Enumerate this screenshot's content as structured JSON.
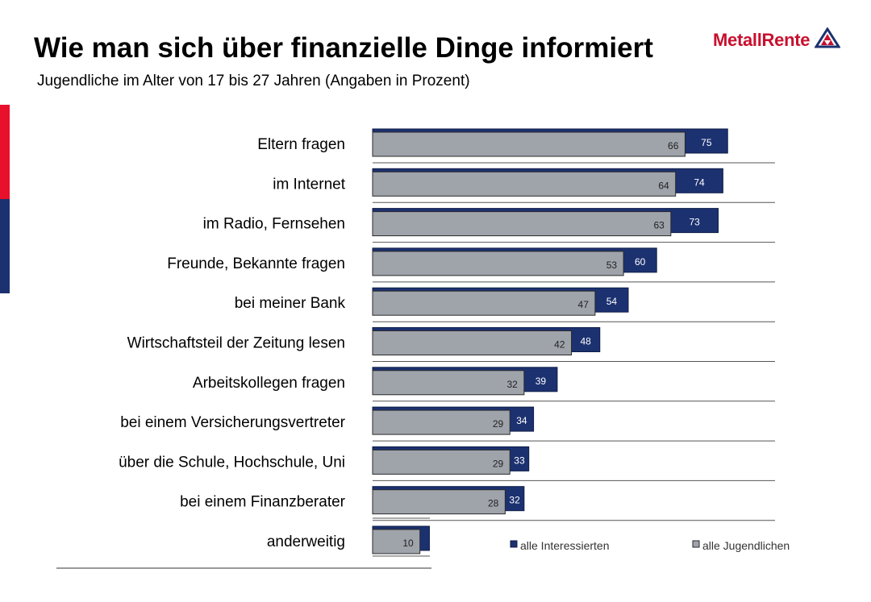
{
  "header": {
    "title": "Wie man sich über finanzielle Dinge informiert",
    "subtitle": "Jugendliche im Alter von 17 bis 27 Jahren (Angaben in Prozent)"
  },
  "logo": {
    "text": "MetallRente",
    "text_color": "#c8102e",
    "icon": "mountain-triangle-icon"
  },
  "colors": {
    "series_interested": "#1c3170",
    "series_all": "#9fa3aa",
    "accent_red": "#e8102b",
    "accent_blue": "#1c3170"
  },
  "chart_data": {
    "type": "bar",
    "orientation": "horizontal",
    "categories": [
      "Eltern fragen",
      "im Internet",
      "im Radio, Fernsehen",
      "Freunde, Bekannte fragen",
      "bei meiner Bank",
      "Wirtschaftsteil der Zeitung lesen",
      "Arbeitskollegen fragen",
      "bei einem Versicherungsvertreter",
      "über die Schule, Hochschule, Uni",
      "bei einem Finanzberater",
      "anderweitig"
    ],
    "series": [
      {
        "name": "alle Interessierten",
        "values": [
          75,
          74,
          73,
          60,
          54,
          48,
          39,
          34,
          33,
          32,
          12
        ]
      },
      {
        "name": "alle Jugendlichen",
        "values": [
          66,
          64,
          63,
          53,
          47,
          42,
          32,
          29,
          29,
          28,
          10
        ]
      }
    ],
    "value_labels": {
      "alle Interessierten": [
        "75",
        "74",
        "73",
        "60",
        "54",
        "48",
        "39",
        "34",
        "33",
        "32",
        ""
      ],
      "alle Jugendlichen": [
        "66",
        "64",
        "63",
        "53",
        "47",
        "42",
        "32",
        "29",
        "29",
        "28",
        "10"
      ]
    },
    "xlim": [
      0,
      100
    ],
    "legend": {
      "placement": "bottom-right",
      "entries": [
        "alle Interessierten",
        "alle Jugendlichen"
      ]
    }
  }
}
